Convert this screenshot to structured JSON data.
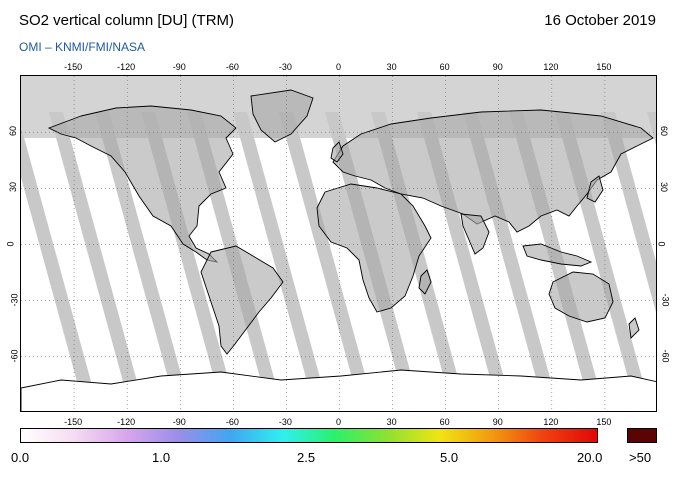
{
  "header": {
    "title": "SO2 vertical column [DU] (TRM)",
    "date": "16 October 2019",
    "source": "OMI  –  KNMI/FMI/NASA"
  },
  "map": {
    "projection": "equirectangular",
    "lon_range": [
      -180,
      180
    ],
    "lat_range": [
      -90,
      90
    ],
    "lon_ticks_top": [
      "-150",
      "-120",
      "-90",
      "-60",
      "-30",
      "0",
      "30",
      "60",
      "90",
      "120",
      "150"
    ],
    "lon_ticks_bottom": [
      "-150",
      "-120",
      "-90",
      "-60",
      "-30",
      "0",
      "30",
      "60",
      "90",
      "120",
      "150"
    ],
    "lat_ticks_left": [
      "60",
      "30",
      "0",
      "-30",
      "-60"
    ],
    "lat_ticks_right": [
      "60",
      "30",
      "0",
      "-30",
      "-60"
    ],
    "grid": true,
    "colors": {
      "no_data": "#d4d4d4",
      "swath_gap": "#c8c8c8",
      "land_fill": "#a6a6a6",
      "coastline": "#000000",
      "background": "#ffffff"
    }
  },
  "colorbar": {
    "labels": [
      "0.0",
      "1.0",
      "2.5",
      "5.0",
      "20.0",
      ">50"
    ],
    "stops": [
      "#ffffff",
      "#f6dcf2",
      "#d9a6ec",
      "#9a8ee8",
      "#3fa7f0",
      "#2ff0ee",
      "#2cf06a",
      "#8fe030",
      "#f0e414",
      "#f09a10",
      "#f04010",
      "#e00808"
    ],
    "over_color": "#5a0404"
  }
}
